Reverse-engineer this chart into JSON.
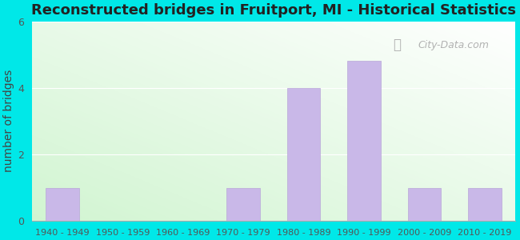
{
  "title": "Reconstructed bridges in Fruitport, MI - Historical Statistics",
  "categories": [
    "1940 - 1949",
    "1950 - 1959",
    "1960 - 1969",
    "1970 - 1979",
    "1980 - 1989",
    "1990 - 1999",
    "2000 - 2009",
    "2010 - 2019"
  ],
  "values": [
    1,
    0,
    0,
    1,
    4,
    4.8,
    1,
    1
  ],
  "ylabel": "number of bridges",
  "ylim": [
    0,
    6
  ],
  "yticks": [
    0,
    2,
    4,
    6
  ],
  "bar_color": "#c9b8e8",
  "bar_edge_color": "#b8a8d8",
  "outer_bg": "#00e8e8",
  "title_fontsize": 13,
  "axis_label_fontsize": 10,
  "tick_fontsize": 8,
  "watermark_text": "City-Data.com"
}
